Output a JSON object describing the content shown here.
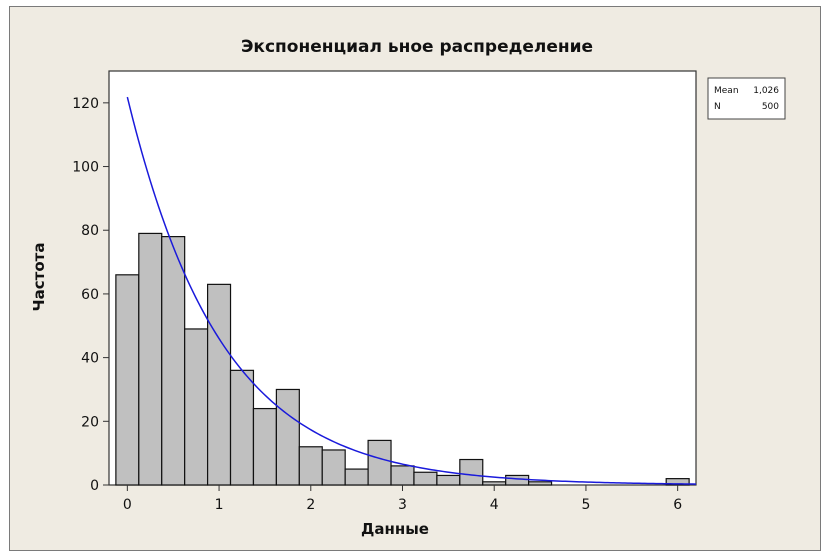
{
  "chart_data": {
    "type": "bar",
    "title": "Экспоненциал ьное распределение",
    "xlabel": "Данные",
    "ylabel": "Частота",
    "xlim": [
      -0.2,
      6.2
    ],
    "ylim": [
      0,
      130
    ],
    "xticks": [
      0,
      1,
      2,
      3,
      4,
      5,
      6
    ],
    "yticks": [
      0,
      20,
      40,
      60,
      80,
      100,
      120
    ],
    "bin_width": 0.25,
    "bins": [
      {
        "x": 0.0,
        "value": 66
      },
      {
        "x": 0.25,
        "value": 79
      },
      {
        "x": 0.5,
        "value": 78
      },
      {
        "x": 0.75,
        "value": 49
      },
      {
        "x": 1.0,
        "value": 63
      },
      {
        "x": 1.25,
        "value": 36
      },
      {
        "x": 1.5,
        "value": 24
      },
      {
        "x": 1.75,
        "value": 30
      },
      {
        "x": 2.0,
        "value": 12
      },
      {
        "x": 2.25,
        "value": 11
      },
      {
        "x": 2.5,
        "value": 5
      },
      {
        "x": 2.75,
        "value": 14
      },
      {
        "x": 3.0,
        "value": 6
      },
      {
        "x": 3.25,
        "value": 4
      },
      {
        "x": 3.5,
        "value": 3
      },
      {
        "x": 3.75,
        "value": 8
      },
      {
        "x": 4.0,
        "value": 1
      },
      {
        "x": 4.25,
        "value": 3
      },
      {
        "x": 4.5,
        "value": 1
      },
      {
        "x": 4.75,
        "value": 0
      },
      {
        "x": 5.0,
        "value": 0
      },
      {
        "x": 5.25,
        "value": 0
      },
      {
        "x": 5.5,
        "value": 0
      },
      {
        "x": 5.75,
        "value": 0
      },
      {
        "x": 6.0,
        "value": 2
      }
    ],
    "fit_curve": {
      "type": "exponential",
      "mean": 1.026,
      "n": 500
    },
    "legend": {
      "placement": "top-right",
      "rows": [
        {
          "label": "Mean",
          "value": "1,026"
        },
        {
          "label": "N",
          "value": "500"
        }
      ]
    },
    "colors": {
      "bar_fill": "#c0c0c0",
      "bar_stroke": "#111111",
      "curve": "#1a1adb",
      "background": "#efebe2",
      "plot_background": "#ffffff"
    }
  }
}
